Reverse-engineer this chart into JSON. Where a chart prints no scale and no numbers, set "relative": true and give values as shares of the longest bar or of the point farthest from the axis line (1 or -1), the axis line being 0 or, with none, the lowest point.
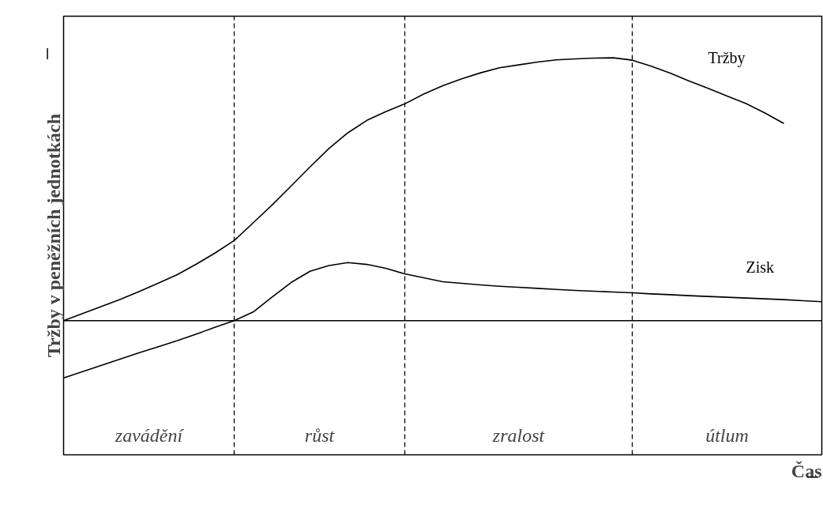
{
  "chart_data": {
    "type": "line",
    "relative": true,
    "xlabel": "Čas",
    "ylabel": "Tržby v peněžních jednotkách",
    "marker": "none",
    "line_style": "solid",
    "categories": [
      null,
      null,
      null,
      null,
      null,
      null,
      null,
      null,
      null,
      null,
      null,
      null,
      null,
      null,
      null,
      null,
      null,
      null,
      null,
      null,
      null,
      null,
      null,
      null,
      null,
      null,
      null,
      null,
      null,
      null,
      null,
      null,
      null,
      null,
      null,
      null,
      null,
      null,
      null,
      null,
      null
    ],
    "series": [
      {
        "name": "Tržby",
        "color": "#000000",
        "values": [
          0,
          0.027,
          0.054,
          0.081,
          0.111,
          0.143,
          0.175,
          0.215,
          0.258,
          0.305,
          0.372,
          0.44,
          0.512,
          0.585,
          0.655,
          0.715,
          0.762,
          0.795,
          0.825,
          0.862,
          0.894,
          0.92,
          0.943,
          0.962,
          0.973,
          0.984,
          0.992,
          0.996,
          0.999,
          1,
          0.991,
          0.968,
          0.942,
          0.912,
          0.884,
          0.855,
          0.826,
          0.79,
          0.75,
          null,
          null
        ]
      },
      {
        "name": "Zisk",
        "color": "#000000",
        "values": [
          -0.218,
          -0.194,
          -0.17,
          -0.146,
          -0.122,
          -0.099,
          -0.076,
          -0.051,
          -0.025,
          0,
          0.033,
          0.09,
          0.145,
          0.188,
          0.21,
          0.221,
          0.214,
          0.199,
          0.178,
          0.163,
          0.148,
          0.142,
          0.136,
          0.131,
          0.127,
          0.123,
          0.119,
          0.115,
          0.112,
          0.109,
          0.106,
          0.102,
          0.099,
          0.095,
          0.092,
          0.089,
          0.086,
          0.083,
          0.08,
          0.076,
          0.072
        ]
      }
    ],
    "grid": "x",
    "annotations": [
      "zavádění",
      "růst",
      "zralost",
      "útlum"
    ]
  }
}
